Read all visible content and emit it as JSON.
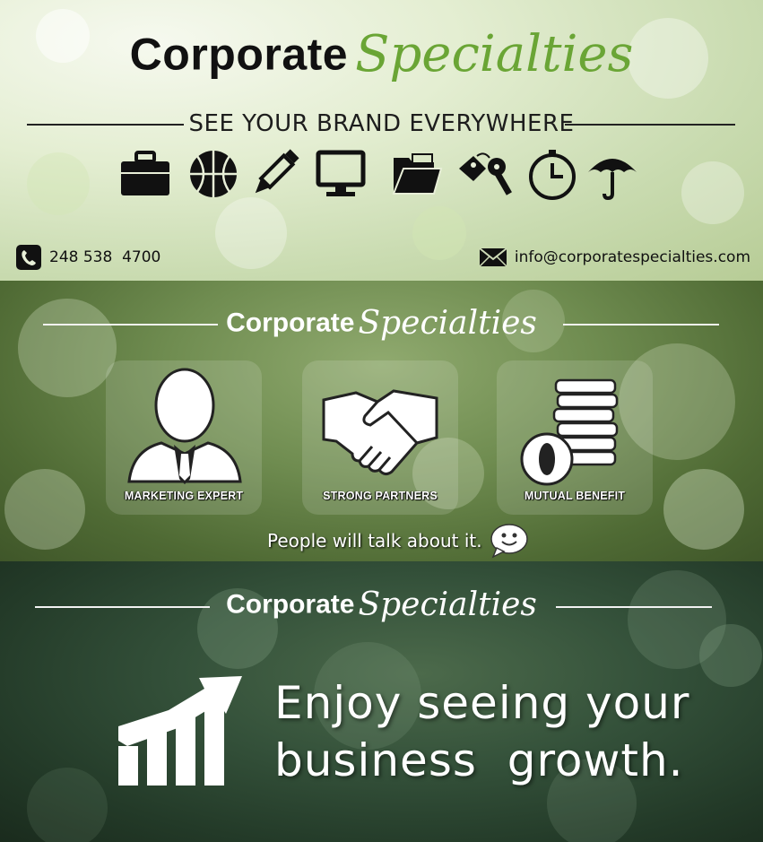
{
  "brand": {
    "name_primary": "Corporate",
    "name_script": "Specialties",
    "tagline": "SEE YOUR BRAND EVERYWHERE"
  },
  "contact": {
    "phone": "248 538  4700",
    "email": "info@corporatespecialties.com"
  },
  "product_icons": [
    "briefcase-icon",
    "basketball-icon",
    "pencil-icon",
    "monitor-icon",
    "folder-icon",
    "keys-icon",
    "clock-icon",
    "umbrella-icon"
  ],
  "features": [
    {
      "label": "MARKETING EXPERT",
      "icon": "businessman-icon"
    },
    {
      "label": "STRONG PARTNERS",
      "icon": "handshake-icon"
    },
    {
      "label": "MUTUAL BENEFIT",
      "icon": "coins-icon"
    }
  ],
  "talk_text": "People will talk about it.",
  "growth": {
    "line1": "Enjoy seeing your",
    "line2": "business  growth."
  },
  "colors": {
    "script_green": "#6aa535",
    "panel2_green": "#6f8c50",
    "panel3_green": "#2a4330"
  }
}
